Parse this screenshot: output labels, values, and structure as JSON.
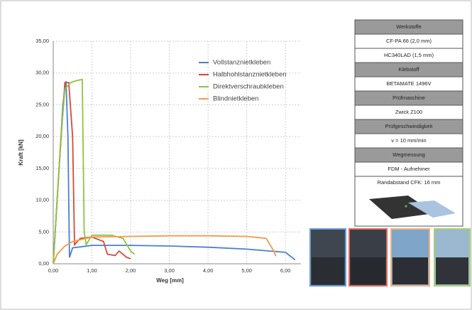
{
  "chart_data": {
    "type": "line",
    "xlabel": "Weg [mm]",
    "ylabel": "Kraft [kN]",
    "xlim": [
      0,
      6.4
    ],
    "ylim": [
      0,
      35
    ],
    "xticks": [
      {
        "value": 0,
        "label": "0,00"
      },
      {
        "value": 1,
        "label": "1,00"
      },
      {
        "value": 2,
        "label": "2,00"
      },
      {
        "value": 3,
        "label": "3,00"
      },
      {
        "value": 4,
        "label": "4,00"
      },
      {
        "value": 5,
        "label": "5,00"
      },
      {
        "value": 6,
        "label": "6,00"
      }
    ],
    "yticks": [
      {
        "value": 0,
        "label": "0,00"
      },
      {
        "value": 5,
        "label": "5,00"
      },
      {
        "value": 10,
        "label": "10,00"
      },
      {
        "value": 15,
        "label": "15,00"
      },
      {
        "value": 20,
        "label": "20,00"
      },
      {
        "value": 25,
        "label": "25,00"
      },
      {
        "value": 30,
        "label": "30,00"
      },
      {
        "value": 35,
        "label": "35,00"
      }
    ],
    "grid": true,
    "legend": "upper right",
    "series": [
      {
        "name": "Vollstanznietkleben",
        "color": "#4a7fd4",
        "x": [
          0,
          0.1,
          0.25,
          0.33,
          0.38,
          0.42,
          0.5,
          1.0,
          2.0,
          3.0,
          4.0,
          5.0,
          5.6,
          6.0,
          6.25
        ],
        "values": [
          0,
          10,
          25,
          28.7,
          20,
          1,
          2.5,
          2.9,
          2.9,
          2.8,
          2.6,
          2.3,
          2.0,
          1.8,
          0.6
        ]
      },
      {
        "name": "Halbhohlstanznietkleben",
        "color": "#d9473a",
        "x": [
          0,
          0.15,
          0.3,
          0.4,
          0.5,
          0.55,
          0.7,
          1.0,
          1.3,
          1.4,
          1.6,
          1.7,
          1.9,
          2.0
        ],
        "values": [
          0,
          15,
          28.5,
          28.5,
          20,
          3,
          4.0,
          4.2,
          3.5,
          1.5,
          1.3,
          2.0,
          1.0,
          0.8
        ]
      },
      {
        "name": "Direktverschraubkleben",
        "color": "#8cc63f",
        "x": [
          0,
          0.2,
          0.3,
          0.45,
          0.6,
          0.75,
          0.8,
          0.85,
          1.0,
          1.5,
          1.8,
          2.0,
          2.1
        ],
        "values": [
          0,
          20,
          27.5,
          28.5,
          28.8,
          29,
          5,
          3.0,
          4.5,
          4.5,
          4.0,
          2.0,
          1.5
        ]
      },
      {
        "name": "Blindnietkleben",
        "color": "#f39a4a",
        "x": [
          0,
          0.1,
          0.3,
          0.5,
          1.0,
          2.0,
          3.0,
          4.0,
          5.0,
          5.5,
          5.7,
          5.75
        ],
        "values": [
          0,
          1.5,
          2.8,
          3.5,
          4.2,
          4.3,
          4.4,
          4.4,
          4.3,
          4.0,
          2.0,
          1.2
        ]
      }
    ]
  },
  "table": {
    "rows": [
      {
        "text": "Werkstoffe",
        "header": true
      },
      {
        "text": "CF-PA 66 (2,0 mm)",
        "header": false
      },
      {
        "text": "HC340LAD (1,5 mm)",
        "header": false
      },
      {
        "text": "Klebstoff",
        "header": true
      },
      {
        "text": "BETAMATE 1496V",
        "header": false
      },
      {
        "text": "Prüfmaschine",
        "header": true
      },
      {
        "text": "Zwick Z100",
        "header": false
      },
      {
        "text": "Prüfgeschwindigkeit",
        "header": true
      },
      {
        "text": "v = 10 mm/min",
        "header": false
      },
      {
        "text": "Wegmessung",
        "header": true
      },
      {
        "text": "FDM - Aufnehmer",
        "header": false
      }
    ],
    "note": "Randabstand CFK: 16 mm"
  }
}
